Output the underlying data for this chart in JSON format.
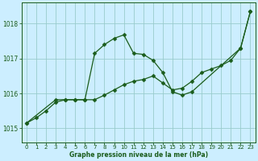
{
  "title": "Graphe pression niveau de la mer (hPa)",
  "xlim": [
    -0.5,
    23.5
  ],
  "ylim": [
    1014.6,
    1018.6
  ],
  "yticks": [
    1015,
    1016,
    1017,
    1018
  ],
  "xticks": [
    0,
    1,
    2,
    3,
    4,
    5,
    6,
    7,
    8,
    9,
    10,
    11,
    12,
    13,
    14,
    15,
    16,
    17,
    18,
    19,
    20,
    21,
    22,
    23
  ],
  "bg_color": "#cceeff",
  "grid_color": "#99cccc",
  "line_color": "#1a5c1a",
  "series1_x": [
    0,
    1,
    2,
    3,
    4,
    5,
    6,
    7,
    8,
    9,
    10,
    11,
    12,
    13,
    14,
    15,
    16,
    17,
    18,
    19,
    20,
    21,
    22,
    23
  ],
  "series1_y": [
    1015.15,
    1015.3,
    1015.5,
    1015.75,
    1015.82,
    1015.82,
    1015.82,
    1015.82,
    1015.95,
    1016.1,
    1016.25,
    1016.35,
    1016.4,
    1016.5,
    1016.3,
    1016.1,
    1016.15,
    1016.35,
    1016.6,
    1016.7,
    1016.8,
    1016.95,
    1017.3,
    1018.35
  ],
  "series2_x": [
    0,
    3,
    4,
    5,
    6,
    7,
    8,
    9,
    10,
    11,
    12,
    13,
    14,
    15,
    16,
    17,
    22,
    23
  ],
  "series2_y": [
    1015.15,
    1015.82,
    1015.82,
    1015.82,
    1015.82,
    1017.15,
    1017.4,
    1017.58,
    1017.68,
    1017.15,
    1017.12,
    1016.95,
    1016.6,
    1016.05,
    1015.95,
    1016.05,
    1017.3,
    1018.35
  ],
  "marker": "D",
  "marker_size": 2.5,
  "linewidth": 0.9,
  "tick_fontsize": 5.0,
  "label_fontsize": 5.5
}
